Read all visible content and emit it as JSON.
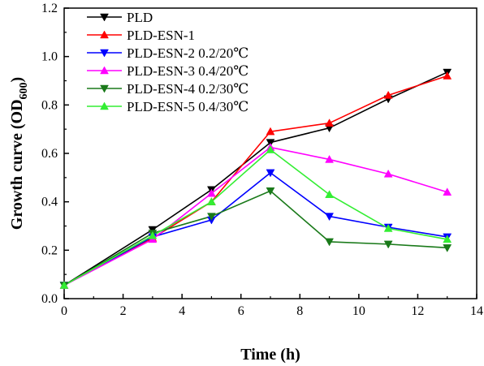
{
  "chart_data": {
    "type": "line",
    "xlabel": "Time (h)",
    "ylabel_main": "Growth curve (OD",
    "ylabel_sub": "600",
    "ylabel_close": ")",
    "xlim": [
      0,
      14
    ],
    "ylim": [
      0.0,
      1.2
    ],
    "xticks": [
      "0",
      "2",
      "4",
      "6",
      "8",
      "10",
      "12",
      "14"
    ],
    "yticks": [
      "0.0",
      "0.2",
      "0.4",
      "0.6",
      "0.8",
      "1.0",
      "1.2"
    ],
    "legend_position": "top-left",
    "grid": false,
    "series": [
      {
        "name": "PLD",
        "color": "#000000",
        "marker": "triangle-down",
        "x": [
          0,
          3,
          5,
          7,
          9,
          11,
          13
        ],
        "y": [
          0.055,
          0.285,
          0.45,
          0.645,
          0.705,
          0.825,
          0.935
        ]
      },
      {
        "name": "PLD-ESN-1",
        "color": "#ff0000",
        "marker": "triangle-up",
        "x": [
          0,
          3,
          5,
          7,
          9,
          11,
          13
        ],
        "y": [
          0.055,
          0.25,
          0.4,
          0.69,
          0.725,
          0.84,
          0.92
        ]
      },
      {
        "name": "PLD-ESN-2 0.2/20℃",
        "color": "#0000ff",
        "marker": "triangle-down",
        "x": [
          0,
          3,
          5,
          7,
          9,
          11,
          13
        ],
        "y": [
          0.055,
          0.255,
          0.325,
          0.52,
          0.34,
          0.295,
          0.255
        ]
      },
      {
        "name": "PLD-ESN-3 0.4/20℃",
        "color": "#ff00ff",
        "marker": "triangle-up",
        "x": [
          0,
          3,
          5,
          7,
          9,
          11,
          13
        ],
        "y": [
          0.055,
          0.245,
          0.435,
          0.625,
          0.575,
          0.515,
          0.44
        ]
      },
      {
        "name": "PLD-ESN-4 0.2/30℃",
        "color": "#1a7a1a",
        "marker": "triangle-down",
        "x": [
          0,
          3,
          5,
          7,
          9,
          11,
          13
        ],
        "y": [
          0.055,
          0.27,
          0.34,
          0.445,
          0.235,
          0.225,
          0.21
        ]
      },
      {
        "name": "PLD-ESN-5 0.4/30℃",
        "color": "#33ee33",
        "marker": "triangle-up",
        "x": [
          0,
          3,
          5,
          7,
          9,
          11,
          13
        ],
        "y": [
          0.055,
          0.26,
          0.4,
          0.615,
          0.43,
          0.29,
          0.245
        ]
      }
    ]
  }
}
